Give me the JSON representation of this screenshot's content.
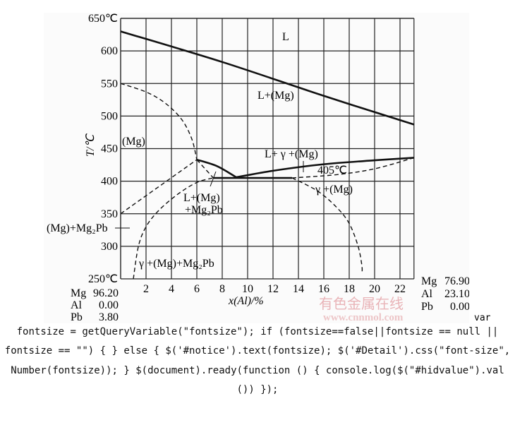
{
  "chart_data": {
    "type": "phase-diagram",
    "ylabel": "T/℃",
    "xlabel": "x(Al)/%",
    "ylim": [
      250,
      650
    ],
    "xlim": [
      0,
      23.1
    ],
    "y_ticks": [
      "650℃",
      "600",
      "550",
      "500",
      "450",
      "400",
      "350",
      "300",
      "250℃"
    ],
    "y_tick_values": [
      650,
      600,
      550,
      500,
      450,
      400,
      350,
      300,
      250
    ],
    "x_ticks": [
      "2",
      "4",
      "6",
      "8",
      "10",
      "12",
      "14",
      "16",
      "18",
      "20",
      "22"
    ],
    "x_tick_values": [
      2,
      4,
      6,
      8,
      10,
      12,
      14,
      16,
      18,
      20,
      22
    ],
    "grid": true,
    "left_composition": [
      {
        "element": "Mg",
        "value": "96.20"
      },
      {
        "element": "Al",
        "value": "0.00"
      },
      {
        "element": "Pb",
        "value": "3.80"
      }
    ],
    "right_composition": [
      {
        "element": "Mg",
        "value": "76.90"
      },
      {
        "element": "Al",
        "value": "23.10"
      },
      {
        "element": "Pb",
        "value": "0.00"
      }
    ],
    "region_labels": {
      "liquid": "L",
      "l_mg": "L+(Mg)",
      "mg": "(Mg)",
      "l_gamma_mg": "L+ γ +(Mg)",
      "eutectic_temp": "405℃",
      "gamma_mg": "γ +(Mg)",
      "l_mg_mg2pb_1": "L+(Mg)",
      "l_mg_mg2pb_2": "+Mg₂Pb",
      "mg_mg2pb": "(Mg)+Mg₂Pb",
      "gamma_mg_mg2pb": "γ +(Mg)+Mg₂Pb"
    },
    "boundaries": [
      {
        "style": "solid",
        "points": [
          [
            0,
            630
          ],
          [
            8,
            583
          ],
          [
            16,
            531
          ],
          [
            23.1,
            487
          ]
        ]
      },
      {
        "style": "dashed",
        "points": [
          [
            0,
            550
          ],
          [
            2,
            537
          ],
          [
            3.5,
            520
          ],
          [
            4.8,
            495
          ],
          [
            5.6,
            465
          ],
          [
            6,
            433
          ]
        ]
      },
      {
        "style": "solid",
        "points": [
          [
            6,
            433
          ],
          [
            7.6,
            423
          ],
          [
            9.1,
            406
          ]
        ]
      },
      {
        "style": "solid",
        "points": [
          [
            9.1,
            406
          ],
          [
            12,
            416
          ],
          [
            16,
            426
          ],
          [
            20,
            432
          ],
          [
            23.1,
            436
          ]
        ]
      },
      {
        "style": "solid",
        "points": [
          [
            7.3,
            405
          ],
          [
            13.5,
            405
          ]
        ]
      },
      {
        "style": "dashed",
        "points": [
          [
            6,
            433
          ],
          [
            7.3,
            405
          ]
        ]
      },
      {
        "style": "dashed",
        "points": [
          [
            0,
            350
          ],
          [
            6,
            433
          ]
        ]
      },
      {
        "style": "dashed",
        "points": [
          [
            1,
            250
          ],
          [
            1.4,
            300
          ],
          [
            2,
            330
          ],
          [
            3,
            355
          ],
          [
            4.5,
            380
          ],
          [
            6,
            398
          ],
          [
            7.3,
            405
          ]
        ]
      },
      {
        "style": "dashed",
        "points": [
          [
            13.5,
            405
          ],
          [
            15.5,
            385
          ],
          [
            17,
            360
          ],
          [
            18,
            335
          ],
          [
            18.7,
            300
          ],
          [
            19,
            270
          ],
          [
            19,
            258
          ]
        ]
      },
      {
        "style": "dashed",
        "points": [
          [
            13.5,
            405
          ],
          [
            17,
            410
          ],
          [
            20,
            419
          ],
          [
            23.1,
            436
          ]
        ]
      }
    ]
  },
  "watermark": {
    "cn": "有色金属在线",
    "url": "www.cnnmol.com"
  },
  "code_text": {
    "var_word": "var",
    "lines": [
      "fontsize = getQueryVariable(\"fontsize\"); if (fontsize==false||fontsize == null ||",
      "fontsize == \"\") { } else { $('#notice').text(fontsize); $('#Detail').css(\"font-size\",",
      "Number(fontsize)); } $(document).ready(function () { console.log($(\"#hidvalue\").val",
      "()) });"
    ]
  }
}
